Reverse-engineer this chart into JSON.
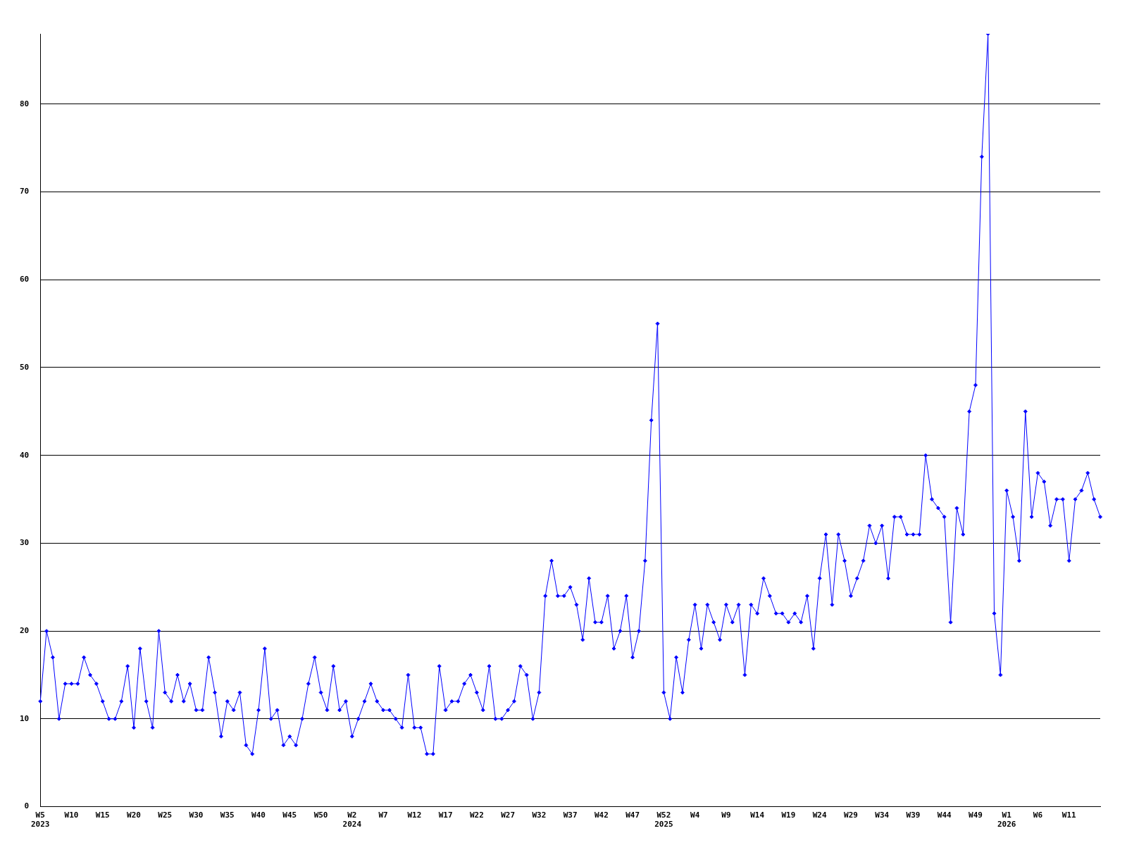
{
  "chart_data": {
    "type": "line",
    "categories": [
      "W5\n2023",
      null,
      null,
      null,
      null,
      "W10",
      null,
      null,
      null,
      null,
      "W15",
      null,
      null,
      null,
      null,
      "W20",
      null,
      null,
      null,
      null,
      "W25",
      null,
      null,
      null,
      null,
      "W30",
      null,
      null,
      null,
      null,
      "W35",
      null,
      null,
      null,
      null,
      "W40",
      null,
      null,
      null,
      null,
      "W45",
      null,
      null,
      null,
      null,
      "W50",
      null,
      null,
      null,
      null,
      "W2\n2024",
      null,
      null,
      null,
      null,
      "W7",
      null,
      null,
      null,
      null,
      "W12",
      null,
      null,
      null,
      null,
      "W17",
      null,
      null,
      null,
      null,
      "W22",
      null,
      null,
      null,
      null,
      "W27",
      null,
      null,
      null,
      null,
      "W32",
      null,
      null,
      null,
      null,
      "W37",
      null,
      null,
      null,
      null,
      "W42",
      null,
      null,
      null,
      null,
      "W47",
      null,
      null,
      null,
      null,
      "W52\n2025",
      null,
      null,
      null,
      null,
      "W4",
      null,
      null,
      null,
      null,
      "W9",
      null,
      null,
      null,
      null,
      "W14",
      null,
      null,
      null,
      null,
      "W19",
      null,
      null,
      null,
      null,
      "W24",
      null,
      null,
      null,
      null,
      "W29",
      null,
      null,
      null,
      null,
      "W34",
      null,
      null,
      null,
      null,
      "W39",
      null,
      null,
      null,
      null,
      "W44",
      null,
      null,
      null,
      null,
      "W49",
      null,
      null,
      null,
      null,
      "W1\n2026",
      null,
      null,
      null,
      null,
      "W6",
      null,
      null,
      null,
      null,
      "W11",
      null,
      null,
      null,
      null,
      null
    ],
    "series": [
      {
        "color": "#0000ff",
        "values": [
          12,
          20,
          17,
          10,
          14,
          14,
          14,
          17,
          15,
          14,
          12,
          10,
          10,
          12,
          16,
          9,
          18,
          12,
          9,
          20,
          13,
          12,
          15,
          12,
          14,
          11,
          11,
          17,
          13,
          8,
          12,
          11,
          13,
          7,
          6,
          11,
          18,
          10,
          11,
          7,
          8,
          7,
          10,
          14,
          17,
          13,
          11,
          16,
          11,
          12,
          8,
          10,
          12,
          14,
          12,
          11,
          11,
          10,
          9,
          15,
          9,
          9,
          6,
          6,
          16,
          11,
          12,
          12,
          14,
          15,
          13,
          11,
          16,
          10,
          10,
          11,
          12,
          16,
          15,
          10,
          13,
          24,
          28,
          24,
          24,
          25,
          23,
          19,
          26,
          21,
          21,
          24,
          18,
          20,
          24,
          17,
          20,
          28,
          44,
          55,
          13,
          10,
          17,
          13,
          19,
          23,
          18,
          23,
          21,
          19,
          23,
          21,
          23,
          15,
          23,
          22,
          26,
          24,
          22,
          22,
          21,
          22,
          21,
          24,
          18,
          26,
          31,
          23,
          31,
          28,
          24,
          26,
          28,
          32,
          30,
          32,
          26,
          33,
          33,
          31,
          31,
          31,
          40,
          35,
          34,
          33,
          21,
          34,
          31,
          45,
          48,
          74,
          88,
          22,
          15,
          36,
          33,
          28,
          45,
          33,
          38,
          37,
          32,
          35,
          35,
          28,
          35,
          36,
          38,
          35,
          33
        ]
      }
    ],
    "ylim": [
      0,
      88
    ],
    "yticks": [
      0,
      10,
      20,
      30,
      40,
      50,
      60,
      70,
      80
    ],
    "grid": "y",
    "legend": false,
    "marker": "diamond",
    "line_style": "solid"
  }
}
